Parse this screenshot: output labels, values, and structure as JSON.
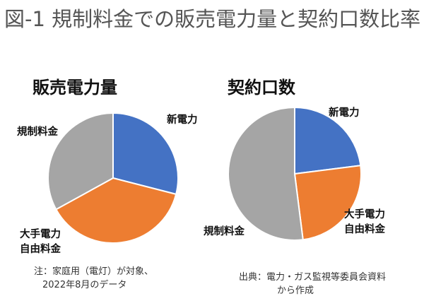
{
  "title": "図-1 規制料金での販売電力量と契約口数比率",
  "chart_data": [
    {
      "type": "pie",
      "title": "販売電力量",
      "categories": [
        "新電力",
        "大手電力自由料金",
        "規制料金"
      ],
      "values": [
        29,
        38,
        33
      ],
      "label_lines": [
        [
          "新電力"
        ],
        [
          "大手電力",
          "自由料金"
        ],
        [
          "規制料金"
        ]
      ],
      "colors": [
        "#4472C4",
        "#ED7D31",
        "#A5A5A5"
      ]
    },
    {
      "type": "pie",
      "title": "契約口数",
      "categories": [
        "新電力",
        "大手電力自由料金",
        "規制料金"
      ],
      "values": [
        23,
        25,
        52
      ],
      "label_lines": [
        [
          "新電力"
        ],
        [
          "大手電力",
          "自由料金"
        ],
        [
          "規制料金"
        ]
      ],
      "colors": [
        "#4472C4",
        "#ED7D31",
        "#A5A5A5"
      ]
    }
  ],
  "notes": {
    "left": [
      "注：家庭用（電灯）が対象、",
      "2022年8月のデータ"
    ],
    "right": [
      "出典：電力・ガス監視等委員会資料",
      "から作成"
    ]
  }
}
